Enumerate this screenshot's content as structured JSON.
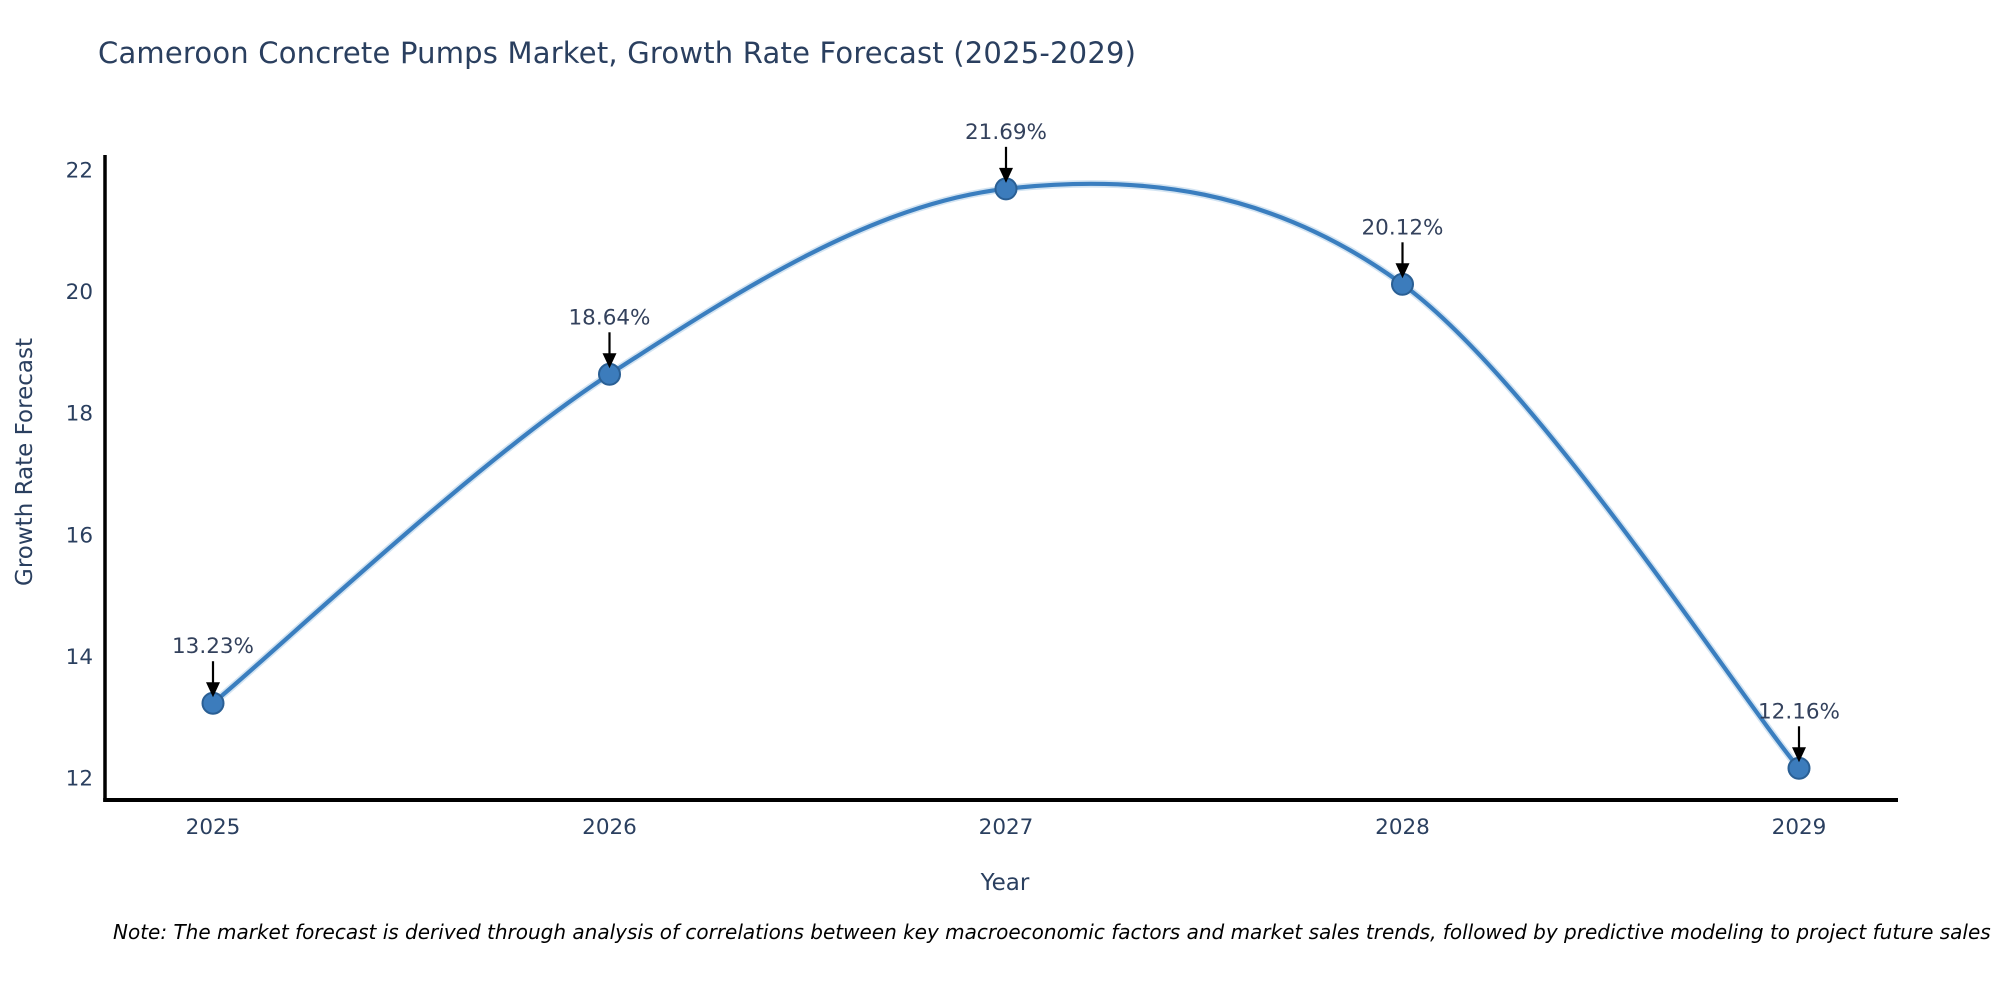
{
  "chart_data": {
    "type": "line",
    "title": "Cameroon Concrete Pumps Market, Growth Rate Forecast (2025-2029)",
    "xlabel": "Year",
    "ylabel": "Growth Rate Forecast",
    "x": [
      2025,
      2026,
      2027,
      2028,
      2029
    ],
    "series": [
      {
        "name": "Growth Rate Forecast",
        "values": [
          13.23,
          18.64,
          21.69,
          20.12,
          12.16
        ]
      }
    ],
    "point_labels": [
      "13.23%",
      "18.64%",
      "21.69%",
      "20.12%",
      "12.16%"
    ],
    "x_ticks": [
      "2025",
      "2026",
      "2027",
      "2028",
      "2029"
    ],
    "y_ticks": [
      12,
      14,
      16,
      18,
      20,
      22
    ],
    "ylim": [
      11.6,
      22.65
    ],
    "grid": false,
    "legend_position": "none",
    "line_shape": "spline",
    "colors": {
      "line": "#3a7ebf",
      "line_halo": "#aecde8",
      "marker_fill": "#3c7cbc",
      "marker_edge": "#2a5f94",
      "axis": "#000000",
      "tick_text": "#2a3f5f",
      "annotation_text": "#33415c",
      "arrow": "#000000",
      "title_text": "#2a3f5f"
    }
  },
  "note": "Note: The market forecast is derived through analysis of correlations between key macroeconomic factors and market sales trends, followed by predictive modeling to project future sales"
}
